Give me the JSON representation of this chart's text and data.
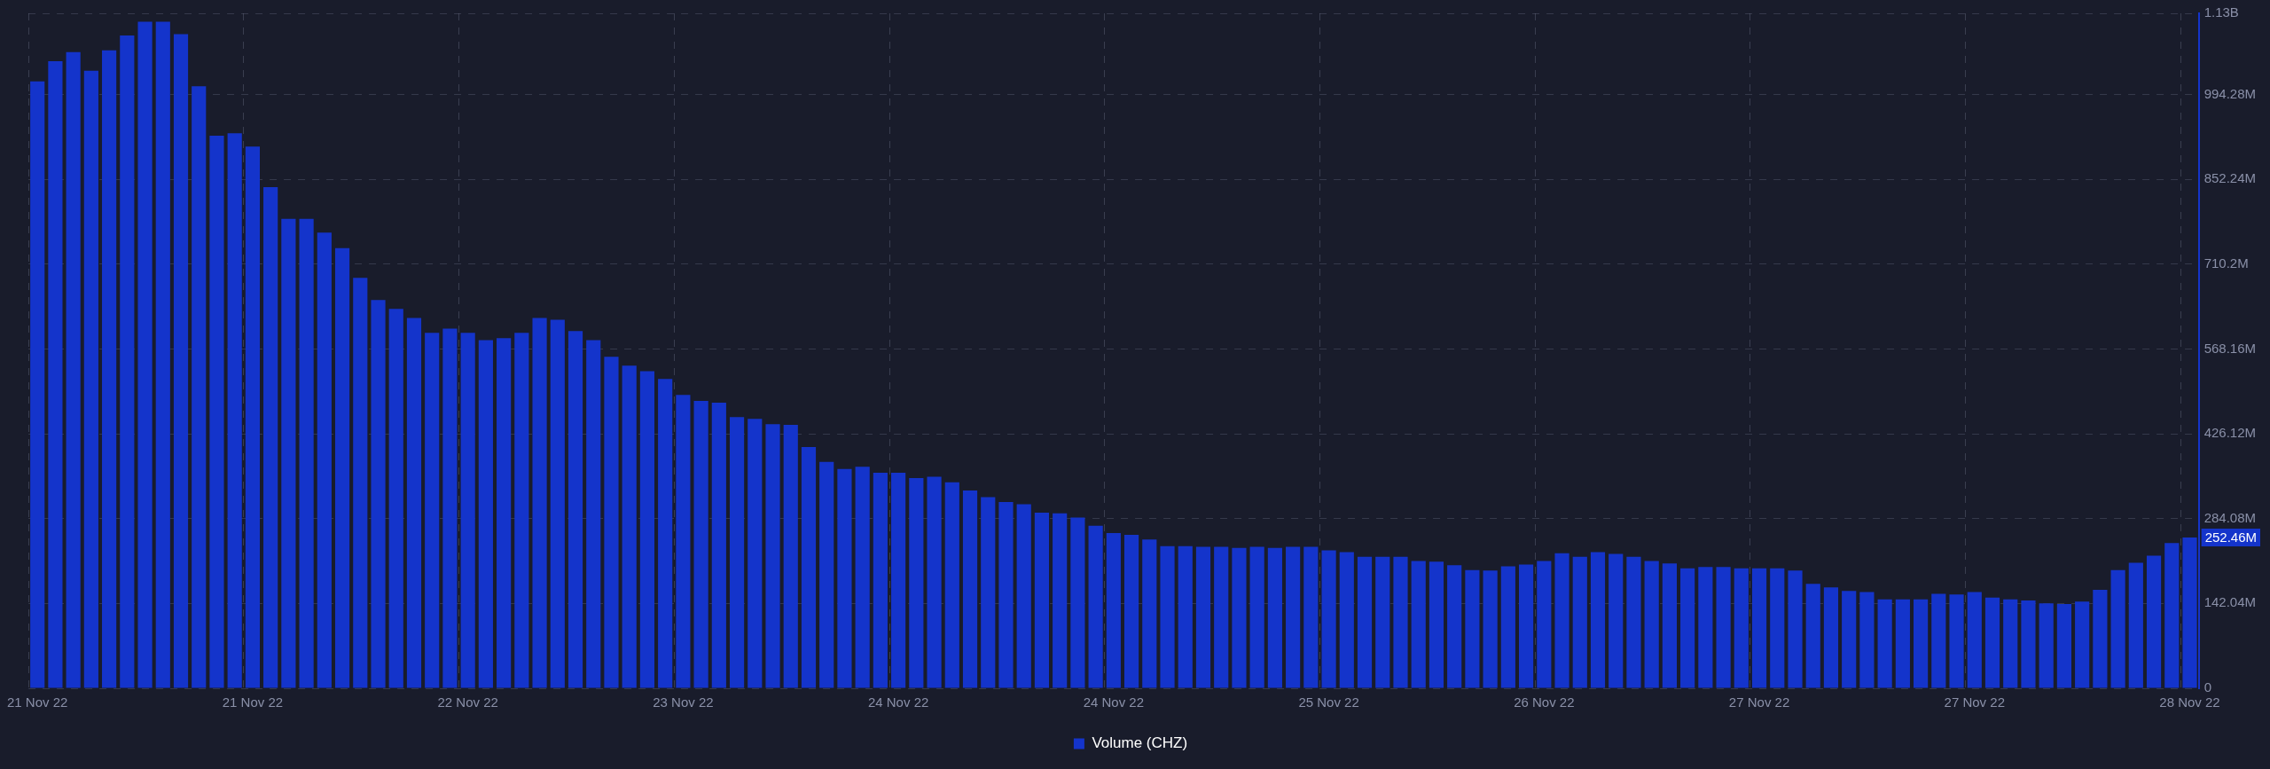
{
  "chart_data": {
    "type": "bar",
    "categories": [
      "21 Nov 22",
      null,
      null,
      null,
      null,
      null,
      null,
      null,
      null,
      null,
      null,
      null,
      "21 Nov 22",
      null,
      null,
      null,
      null,
      null,
      null,
      null,
      null,
      null,
      null,
      null,
      "22 Nov 22",
      null,
      null,
      null,
      null,
      null,
      null,
      null,
      null,
      null,
      null,
      null,
      "23 Nov 22",
      null,
      null,
      null,
      null,
      null,
      null,
      null,
      null,
      null,
      null,
      null,
      "24 Nov 22",
      null,
      null,
      null,
      null,
      null,
      null,
      null,
      null,
      null,
      null,
      null,
      "24 Nov 22",
      null,
      null,
      null,
      null,
      null,
      null,
      null,
      null,
      null,
      null,
      null,
      "25 Nov 22",
      null,
      null,
      null,
      null,
      null,
      null,
      null,
      null,
      null,
      null,
      null,
      "26 Nov 22",
      null,
      null,
      null,
      null,
      null,
      null,
      null,
      null,
      null,
      null,
      null,
      "27 Nov 22",
      null,
      null,
      null,
      null,
      null,
      null,
      null,
      null,
      null,
      null,
      null,
      "27 Nov 22",
      null,
      null,
      null,
      null,
      null,
      null,
      null,
      null,
      null,
      null,
      null,
      "28 Nov 22"
    ],
    "series": [
      {
        "name": "Volume (CHZ)",
        "color": "#1434cb",
        "values": [
          1016000000,
          1050000000,
          1065000000,
          1034000000,
          1068000000,
          1093000000,
          1116000000,
          1116000000,
          1095000000,
          1008000000,
          925000000,
          929000000,
          907000000,
          839000000,
          786000000,
          786000000,
          763000000,
          737000000,
          687000000,
          650000000,
          635000000,
          620000000,
          595000000,
          602000000,
          595000000,
          583000000,
          586000000,
          595000000,
          620000000,
          617000000,
          598000000,
          583000000,
          555000000,
          540000000,
          531000000,
          518000000,
          491000000,
          481000000,
          478000000,
          454000000,
          451000000,
          442000000,
          441000000,
          404000000,
          379000000,
          367000000,
          371000000,
          361000000,
          361000000,
          352000000,
          354000000,
          345000000,
          331000000,
          320000000,
          312000000,
          308000000,
          294000000,
          293000000,
          286000000,
          272000000,
          260000000,
          257000000,
          249000000,
          238000000,
          238000000,
          237000000,
          237000000,
          235000000,
          237000000,
          235000000,
          237000000,
          237000000,
          231000000,
          228000000,
          220000000,
          220000000,
          220000000,
          213000000,
          212000000,
          206000000,
          198000000,
          197000000,
          204000000,
          207000000,
          213000000,
          226000000,
          220000000,
          228000000,
          225000000,
          220000000,
          213000000,
          209000000,
          201000000,
          203000000,
          203000000,
          201000000,
          201000000,
          201000000,
          197000000,
          175000000,
          169000000,
          163000000,
          161000000,
          149000000,
          149000000,
          149000000,
          158000000,
          157000000,
          161000000,
          152000000,
          149000000,
          147000000,
          142000000,
          141000000,
          145000000,
          165000000,
          198000000,
          210000000,
          222000000,
          243000000,
          252460000
        ]
      }
    ],
    "ylim": [
      0,
      1130000000
    ],
    "yticks": [
      0,
      {
        "value": 142040000,
        "label": "142.04M"
      },
      {
        "value": 284080000,
        "label": "284.08M"
      },
      {
        "value": 426120000,
        "label": "426.12M"
      },
      {
        "value": 568160000,
        "label": "568.16M"
      },
      {
        "value": 710200000,
        "label": "710.2M"
      },
      {
        "value": 852240000,
        "label": "852.24M"
      },
      {
        "value": 994280000,
        "label": "994.28M"
      },
      {
        "value": 1130000000,
        "label": "1.13B"
      }
    ],
    "annotations": [
      {
        "text": "252.46M",
        "x": "28 Nov 22",
        "y": 252460000
      }
    ],
    "grid": true,
    "legend": "bottom"
  }
}
